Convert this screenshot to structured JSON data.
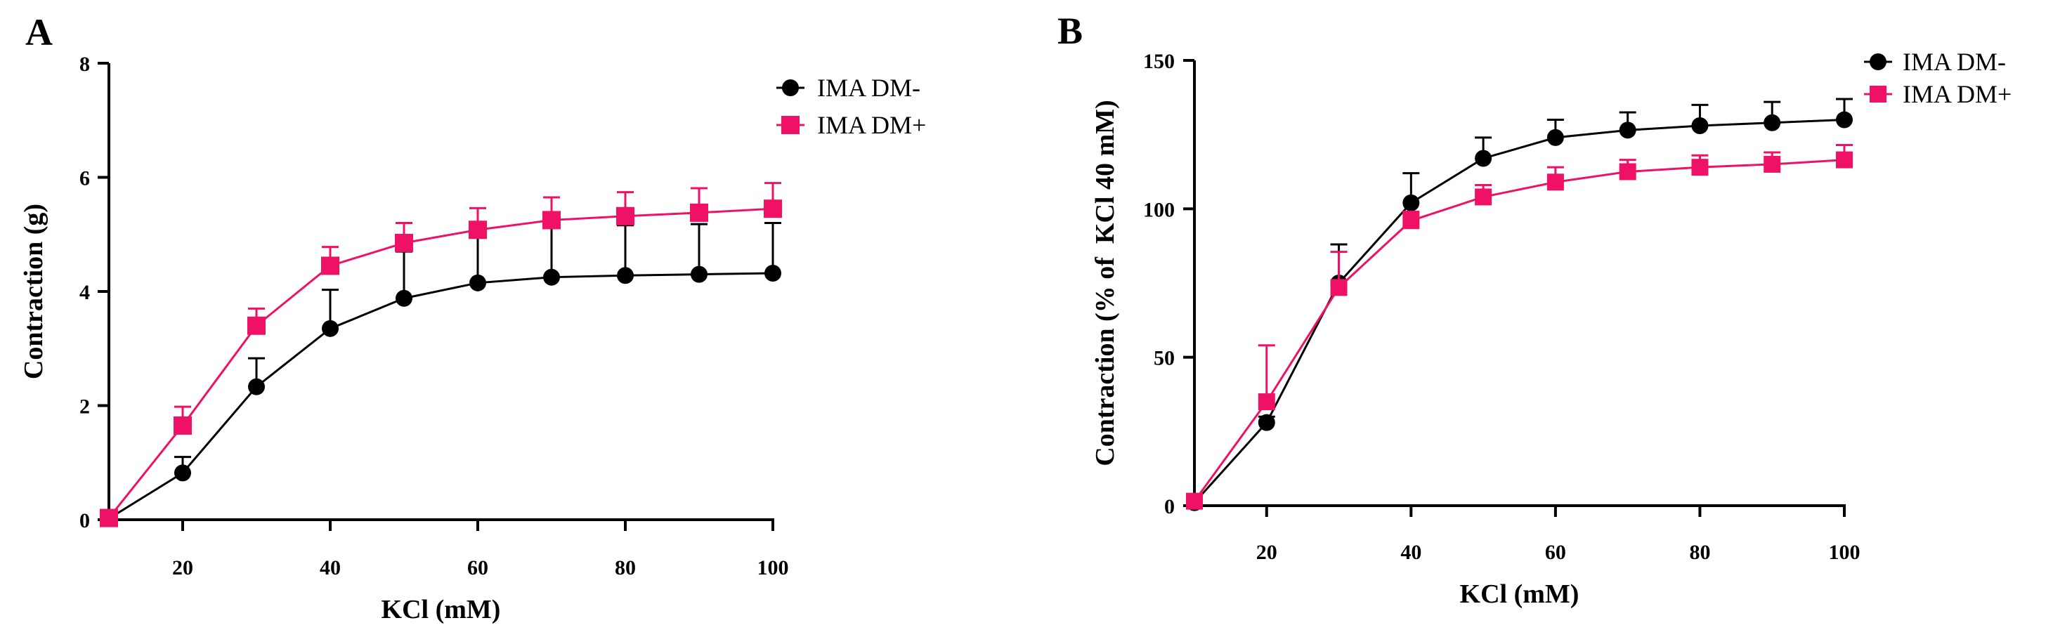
{
  "chart_data": [
    {
      "type": "line",
      "panel_label": "A",
      "xlabel": "KCl (mM)",
      "ylabel": "Contraction (g)",
      "xlim": [
        10,
        100
      ],
      "ylim": [
        0,
        8
      ],
      "xticks": [
        20,
        40,
        60,
        80,
        100
      ],
      "yticks": [
        0,
        2,
        4,
        6,
        8
      ],
      "x": [
        10,
        20,
        30,
        40,
        50,
        60,
        70,
        80,
        90,
        100
      ],
      "legend_position": "top-right",
      "series": [
        {
          "name": "IMA DM-",
          "color": "#000000",
          "marker": "circle",
          "values": [
            0.02,
            0.82,
            2.33,
            3.35,
            3.88,
            4.15,
            4.25,
            4.28,
            4.3,
            4.32
          ],
          "errors": [
            0.05,
            0.28,
            0.5,
            0.68,
            0.82,
            0.86,
            0.88,
            0.88,
            0.88,
            0.88
          ]
        },
        {
          "name": "IMA DM+",
          "color": "#ee1166",
          "marker": "square",
          "values": [
            0.03,
            1.65,
            3.4,
            4.45,
            4.85,
            5.08,
            5.25,
            5.32,
            5.38,
            5.45
          ],
          "errors": [
            0.05,
            0.33,
            0.3,
            0.33,
            0.35,
            0.38,
            0.4,
            0.42,
            0.43,
            0.45
          ]
        }
      ]
    },
    {
      "type": "line",
      "panel_label": "B",
      "xlabel": "KCl (mM)",
      "ylabel": "Contraction (% of  KCl 40 mM)",
      "xlim": [
        10,
        100
      ],
      "ylim": [
        0,
        150
      ],
      "xticks": [
        20,
        40,
        60,
        80,
        100
      ],
      "yticks": [
        0,
        50,
        100,
        150
      ],
      "x": [
        10,
        20,
        30,
        40,
        50,
        60,
        70,
        80,
        90,
        100
      ],
      "legend_position": "top-right",
      "series": [
        {
          "name": "IMA DM-",
          "color": "#000000",
          "marker": "circle",
          "values": [
            1,
            28,
            75,
            102,
            117,
            124,
            126.5,
            128,
            129,
            130
          ],
          "errors": [
            1,
            2,
            13,
            10,
            7,
            6,
            6,
            7,
            7,
            7
          ]
        },
        {
          "name": "IMA DM+",
          "color": "#ee1166",
          "marker": "square",
          "values": [
            1.5,
            35,
            73.5,
            96,
            104,
            109,
            112.5,
            114,
            115,
            116.5
          ],
          "errors": [
            1,
            19,
            12,
            3,
            4,
            5,
            4,
            4,
            4,
            5
          ]
        }
      ]
    }
  ]
}
